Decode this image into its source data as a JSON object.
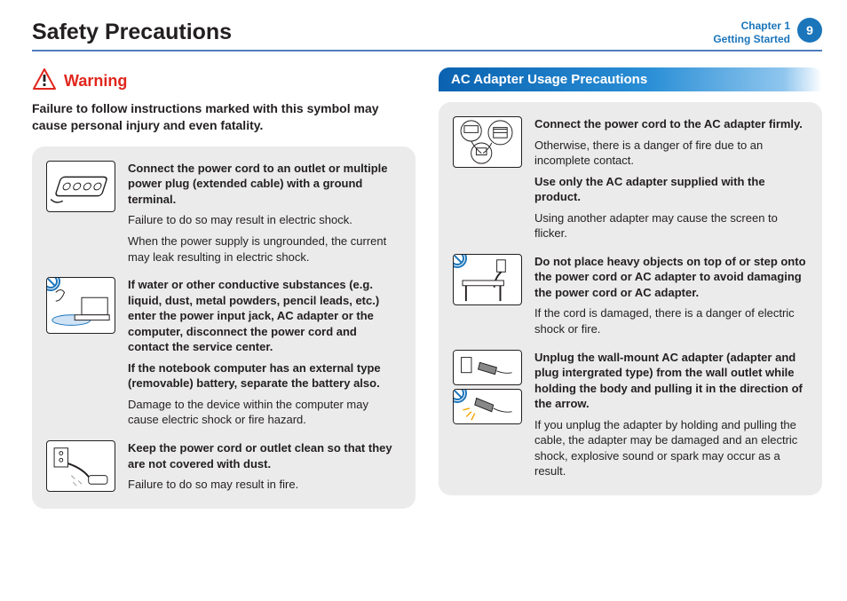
{
  "header": {
    "title": "Safety Precautions",
    "chapter_line1": "Chapter 1",
    "chapter_line2": "Getting Started",
    "page_number": "9",
    "rule_color": "#4f7dbb",
    "brand_blue": "#1b75bb"
  },
  "warning": {
    "label": "Warning",
    "label_color": "#e1261c",
    "text": "Failure to follow instructions marked with this symbol may cause personal injury and even fatality."
  },
  "left_items": [
    {
      "icon": "power-strip",
      "paragraphs": [
        {
          "bold": true,
          "text": "Connect the power cord to an outlet or multiple power plug (extended cable) with a ground terminal."
        },
        {
          "bold": false,
          "text": "Failure to do so may result in electric shock."
        },
        {
          "bold": false,
          "text": "When the power supply is ungrounded, the current may leak resulting in electric shock."
        }
      ]
    },
    {
      "icon": "water-laptop",
      "badge": true,
      "paragraphs": [
        {
          "bold": true,
          "text": "If water or other conductive substances (e.g. liquid, dust, metal powders, pencil leads, etc.) enter the power input jack, AC adapter or the computer, disconnect the power cord and contact the service center."
        },
        {
          "bold": true,
          "text": "If the notebook computer has an external type (removable) battery, separate the battery also."
        },
        {
          "bold": false,
          "text": "Damage to the device within the computer may cause electric shock or fire hazard."
        }
      ]
    },
    {
      "icon": "dusty-outlet",
      "paragraphs": [
        {
          "bold": true,
          "text": "Keep the power cord or outlet clean so that they are not covered with dust."
        },
        {
          "bold": false,
          "text": "Failure to do so may result in fire."
        }
      ]
    }
  ],
  "right_section_title": "AC Adapter Usage Precautions",
  "right_items": [
    {
      "icon": "adapter-diagram",
      "paragraphs": [
        {
          "bold": true,
          "text": "Connect the power cord to the AC adapter firmly."
        },
        {
          "bold": false,
          "text": "Otherwise, there is a danger of fire due to an incomplete contact."
        },
        {
          "bold": true,
          "text": "Use only the AC adapter supplied with the product."
        },
        {
          "bold": false,
          "text": "Using another adapter may cause the screen to flicker."
        }
      ]
    },
    {
      "icon": "cord-on-desk",
      "badge": true,
      "paragraphs": [
        {
          "bold": true,
          "text": "Do not place heavy objects on top of or step onto the power cord or AC adapter to avoid damaging the power cord or AC adapter."
        },
        {
          "bold": false,
          "text": "If the cord is damaged, there is a danger of electric shock or fire."
        }
      ]
    },
    {
      "icon": "unplug-stack",
      "stack": true,
      "paragraphs": [
        {
          "bold": true,
          "text": "Unplug the wall-mount AC adapter (adapter and plug intergrated type) from the wall outlet while holding the body and pulling it in the direction of the arrow."
        },
        {
          "bold": false,
          "text": "If you unplug the adapter by holding and pulling the cable, the adapter may be damaged and an electric shock, explosive sound or spark may occur as a result."
        }
      ]
    }
  ],
  "colors": {
    "box_bg": "#ebebeb",
    "text": "#231f20"
  }
}
